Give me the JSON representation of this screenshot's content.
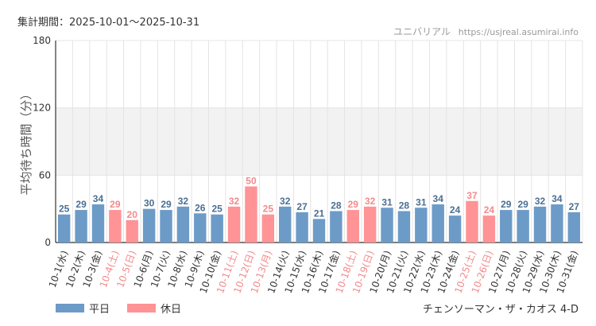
{
  "header": {
    "period_label": "集計期間：2025-10-01～2025-10-31",
    "brand_name": "ユニバリアル",
    "brand_url": "https://usjreal.asumirai.info"
  },
  "legend": {
    "weekday_label": "平日",
    "holiday_label": "休日"
  },
  "footer": {
    "attraction_name": "チェンソーマン・ザ・カオス 4-D"
  },
  "colors": {
    "weekday": "#6c9bc8",
    "holiday": "#ff9395",
    "holiday_text": "#f28a8c",
    "band": "#f2f2f2",
    "grid": "#e4e4e4",
    "axis": "#333333"
  },
  "chart_data": {
    "type": "bar",
    "ylabel": "平均待ち時間（分）",
    "ylim": [
      0,
      180
    ],
    "yticks": [
      0,
      60,
      120,
      180
    ],
    "shaded_band": [
      60,
      120
    ],
    "grid": true,
    "categories": [
      "10-1(水)",
      "10-2(木)",
      "10-3(金)",
      "10-4(土)",
      "10-5(日)",
      "10-6(月)",
      "10-7(火)",
      "10-8(水)",
      "10-9(木)",
      "10-10(金)",
      "10-11(土)",
      "10-12(日)",
      "10-13(月)",
      "10-14(火)",
      "10-15(水)",
      "10-16(木)",
      "10-17(金)",
      "10-18(土)",
      "10-19(日)",
      "10-20(月)",
      "10-21(火)",
      "10-22(水)",
      "10-23(木)",
      "10-24(金)",
      "10-25(土)",
      "10-26(日)",
      "10-27(月)",
      "10-28(火)",
      "10-29(水)",
      "10-30(木)",
      "10-31(金)"
    ],
    "values": [
      25,
      29,
      34,
      29,
      20,
      30,
      29,
      32,
      26,
      25,
      32,
      50,
      25,
      32,
      27,
      21,
      28,
      29,
      32,
      31,
      28,
      31,
      34,
      24,
      37,
      24,
      29,
      29,
      32,
      34,
      27
    ],
    "day_type": [
      "weekday",
      "weekday",
      "weekday",
      "holiday",
      "holiday",
      "weekday",
      "weekday",
      "weekday",
      "weekday",
      "weekday",
      "holiday",
      "holiday",
      "holiday",
      "weekday",
      "weekday",
      "weekday",
      "weekday",
      "holiday",
      "holiday",
      "weekday",
      "weekday",
      "weekday",
      "weekday",
      "weekday",
      "holiday",
      "holiday",
      "weekday",
      "weekday",
      "weekday",
      "weekday",
      "weekday"
    ],
    "series": [
      {
        "name": "平日",
        "color": "#6c9bc8"
      },
      {
        "name": "休日",
        "color": "#ff9395"
      }
    ]
  }
}
